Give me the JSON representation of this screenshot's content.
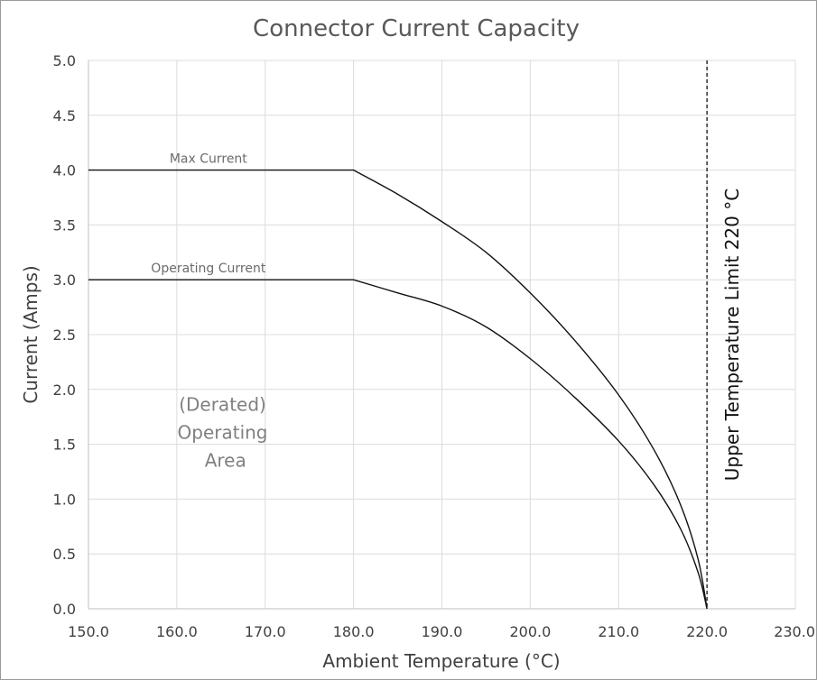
{
  "chart_data": {
    "type": "line",
    "title": "Connector Current Capacity",
    "xlabel": "Ambient Temperature (°C)",
    "ylabel": "Current (Amps)",
    "xlim": [
      150,
      230
    ],
    "ylim": [
      0,
      5
    ],
    "x_ticks": [
      "150.0",
      "160.0",
      "170.0",
      "180.0",
      "190.0",
      "200.0",
      "210.0",
      "220.0",
      "230.0"
    ],
    "y_ticks": [
      "0.0",
      "0.5",
      "1.0",
      "1.5",
      "2.0",
      "2.5",
      "3.0",
      "3.5",
      "4.0",
      "4.5",
      "5.0"
    ],
    "grid": true,
    "series": [
      {
        "name": "Max Current",
        "x": [
          150,
          180,
          185,
          190,
          195,
          200,
          205,
          210,
          214,
          217,
          219,
          220
        ],
        "y": [
          4.0,
          4.0,
          3.78,
          3.53,
          3.25,
          2.88,
          2.45,
          1.95,
          1.45,
          0.95,
          0.45,
          0.0
        ]
      },
      {
        "name": "Operating Current",
        "x": [
          150,
          180,
          185,
          190,
          195,
          200,
          205,
          210,
          214,
          217,
          219,
          220
        ],
        "y": [
          3.0,
          3.0,
          2.88,
          2.76,
          2.57,
          2.28,
          1.93,
          1.53,
          1.13,
          0.73,
          0.33,
          0.0
        ]
      }
    ],
    "annotations": [
      {
        "id": "derated-area",
        "lines": [
          "(Derated)",
          "Operating",
          "Area"
        ],
        "x": 165.5,
        "y": 1.55
      },
      {
        "id": "upper-limit",
        "text": "Upper Temperature Limit 220 °C",
        "x": 220,
        "style": "dashed-vertical"
      }
    ]
  }
}
